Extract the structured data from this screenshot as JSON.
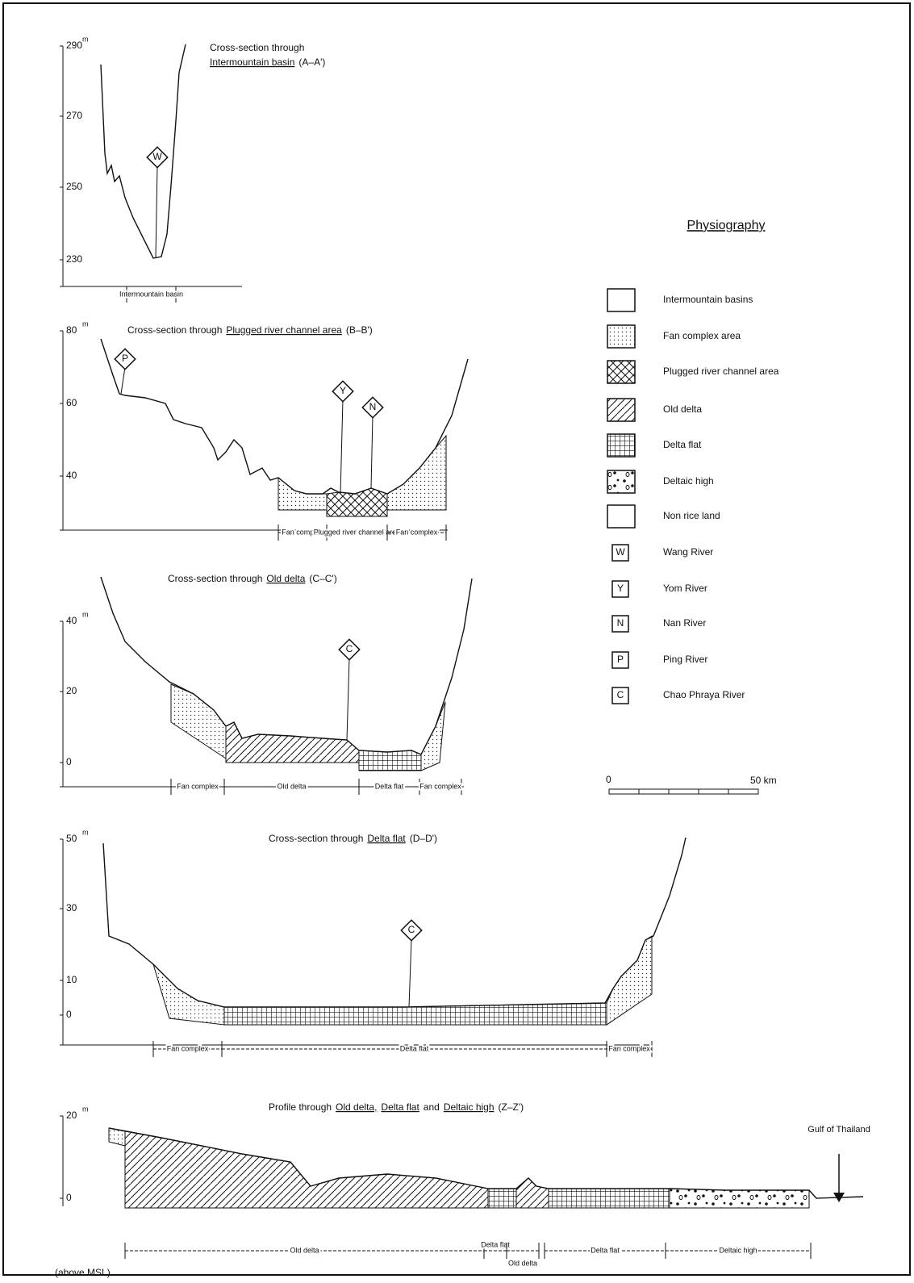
{
  "legend": {
    "title": "Physiography",
    "items": [
      {
        "label": "Intermountain basins"
      },
      {
        "label": "Fan complex area"
      },
      {
        "label": "Plugged river channel area"
      },
      {
        "label": "Old delta"
      },
      {
        "label": "Delta flat"
      },
      {
        "label": "Deltaic high"
      },
      {
        "label": "Non rice land"
      },
      {
        "letter": "W",
        "label": "Wang River"
      },
      {
        "letter": "Y",
        "label": "Yom River"
      },
      {
        "letter": "N",
        "label": "Nan River"
      },
      {
        "letter": "P",
        "label": "Ping River"
      },
      {
        "letter": "C",
        "label": "Chao Phraya River"
      }
    ]
  },
  "scale": {
    "start": "0",
    "end": "50 km"
  },
  "sections": [
    {
      "title": [
        {
          "text": "Cross-section through"
        },
        {
          "text": "Intermountain basin",
          "underline": true
        },
        {
          "text": "(A–A')"
        }
      ],
      "unit": "m",
      "ticks": [
        "290",
        "270",
        "250",
        "230"
      ],
      "markers": [
        "W"
      ],
      "zones": [
        "Intermountain basin"
      ]
    },
    {
      "title": [
        {
          "text": "Cross-section through"
        },
        {
          "text": "Plugged river channel area",
          "underline": true
        },
        {
          "text": "(B–B')"
        }
      ],
      "unit": "m",
      "ticks": [
        "80",
        "60",
        "40"
      ],
      "markers": [
        "P",
        "Y",
        "N"
      ],
      "zones": [
        "Fan complex",
        "Plugged river channel area",
        "Fan complex"
      ]
    },
    {
      "title": [
        {
          "text": "Cross-section through"
        },
        {
          "text": "Old delta",
          "underline": true
        },
        {
          "text": "(C–C')"
        }
      ],
      "unit": "m",
      "ticks": [
        "40",
        "20",
        "0"
      ],
      "markers": [
        "C"
      ],
      "zones": [
        "Fan complex",
        "Old delta",
        "Delta flat",
        "Fan complex"
      ]
    },
    {
      "title": [
        {
          "text": "Cross-section through"
        },
        {
          "text": "Delta flat",
          "underline": true
        },
        {
          "text": "(D–D')"
        }
      ],
      "unit": "m",
      "ticks": [
        "50",
        "30",
        "10",
        "0"
      ],
      "markers": [
        "C"
      ],
      "zones": [
        "Fan complex",
        "Delta flat",
        "Fan complex"
      ]
    },
    {
      "title": [
        {
          "text": "Profile through"
        },
        {
          "text": "Old delta,",
          "underline": true
        },
        {
          "text": "Delta flat",
          "underline": true
        },
        {
          "text": "and"
        },
        {
          "text": "Deltaic high",
          "underline": true
        },
        {
          "text": "(Z–Z')"
        }
      ],
      "unit": "m",
      "ticks": [
        "20",
        "0"
      ],
      "markers": [],
      "zones": [
        "Old delta",
        "Delta flat",
        "Old delta",
        "Delta flat",
        "Deltaic high"
      ],
      "note": "(above MSL)",
      "sea": "Gulf of Thailand"
    }
  ]
}
